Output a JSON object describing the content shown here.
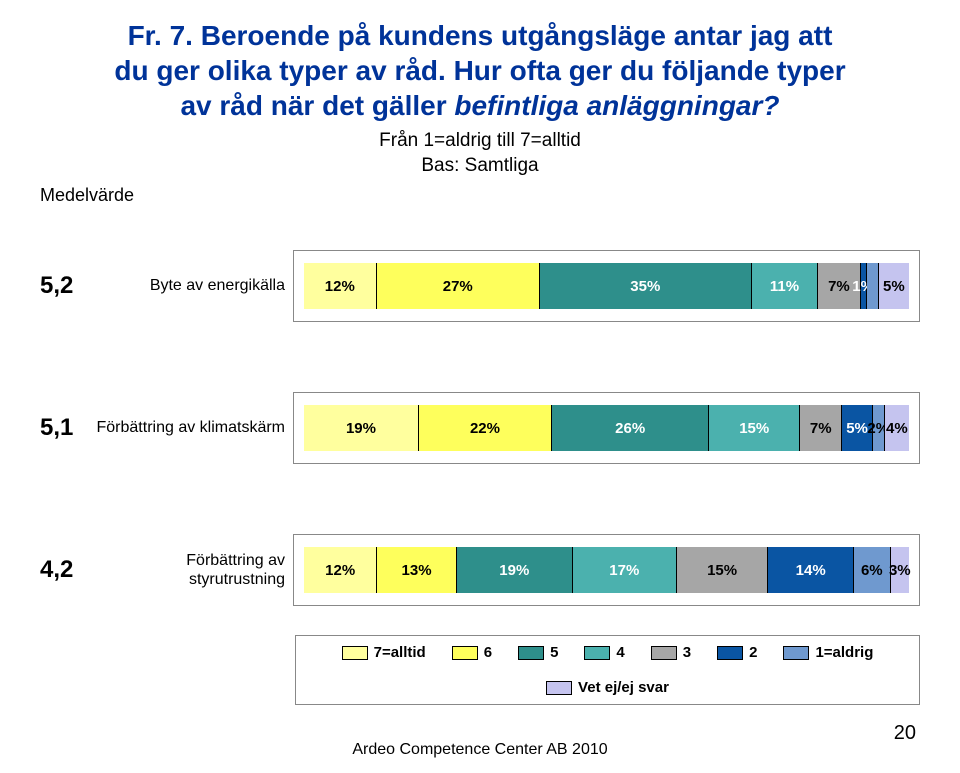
{
  "header": {
    "title_line1": "Fr. 7. Beroende på kundens utgångsläge antar jag att",
    "title_line2": "du ger olika typer av råd. Hur ofta ger du följande typer",
    "title_line3_plain": "av råd när det gäller ",
    "title_line3_em": "befintliga anläggningar?",
    "sub1": "Från 1=aldrig till 7=alltid",
    "sub2": "Bas: Samtliga",
    "medelvarde": "Medelvärde"
  },
  "series_colors": {
    "c7": "#ffff9e",
    "c6": "#feff5c",
    "c5": "#2e8f8b",
    "c4": "#4bb1ae",
    "c3": "#a6a6a6",
    "c2": "#0a55a3",
    "c1": "#6f99cf",
    "vet": "#c5c4ef"
  },
  "legend": [
    {
      "key": "c7",
      "label": "7=alltid"
    },
    {
      "key": "c6",
      "label": "6"
    },
    {
      "key": "c5",
      "label": "5"
    },
    {
      "key": "c4",
      "label": "4"
    },
    {
      "key": "c3",
      "label": "3"
    },
    {
      "key": "c2",
      "label": "2"
    },
    {
      "key": "c1",
      "label": "1=aldrig"
    },
    {
      "key": "vet",
      "label": "Vet ej/ej svar"
    }
  ],
  "rows": [
    {
      "mean": "5,2",
      "label": "Byte av energikälla",
      "segs": [
        {
          "k": "c7",
          "v": 12,
          "t": "12%"
        },
        {
          "k": "c6",
          "v": 27,
          "t": "27%"
        },
        {
          "k": "c5",
          "v": 35,
          "t": "35%"
        },
        {
          "k": "c4",
          "v": 11,
          "t": "11%"
        },
        {
          "k": "c3",
          "v": 7,
          "t": "7%"
        },
        {
          "k": "c2",
          "v": 1,
          "t": "1%"
        },
        {
          "k": "c1",
          "v": 2,
          "t": ""
        },
        {
          "k": "vet",
          "v": 5,
          "t": "5%"
        }
      ]
    },
    {
      "mean": "5,1",
      "label": "Förbättring av klimatskärm",
      "segs": [
        {
          "k": "c7",
          "v": 19,
          "t": "19%"
        },
        {
          "k": "c6",
          "v": 22,
          "t": "22%"
        },
        {
          "k": "c5",
          "v": 26,
          "t": "26%"
        },
        {
          "k": "c4",
          "v": 15,
          "t": "15%"
        },
        {
          "k": "c3",
          "v": 7,
          "t": "7%"
        },
        {
          "k": "c2",
          "v": 5,
          "t": "5%"
        },
        {
          "k": "c1",
          "v": 2,
          "t": "2%"
        },
        {
          "k": "vet",
          "v": 4,
          "t": "4%"
        }
      ]
    },
    {
      "mean": "4,2",
      "label": "Förbättring av styrutrustning",
      "segs": [
        {
          "k": "c7",
          "v": 12,
          "t": "12%"
        },
        {
          "k": "c6",
          "v": 13,
          "t": "13%"
        },
        {
          "k": "c5",
          "v": 19,
          "t": "19%"
        },
        {
          "k": "c4",
          "v": 17,
          "t": "17%"
        },
        {
          "k": "c3",
          "v": 15,
          "t": "15%"
        },
        {
          "k": "c2",
          "v": 14,
          "t": "14%"
        },
        {
          "k": "c1",
          "v": 6,
          "t": "6%"
        },
        {
          "k": "vet",
          "v": 3,
          "t": "3%"
        }
      ]
    }
  ],
  "footer": {
    "text": "Ardeo Competence Center AB 2010",
    "page": "20"
  },
  "dark_text_keys": [
    "c7",
    "c6",
    "c3",
    "c1",
    "vet"
  ]
}
